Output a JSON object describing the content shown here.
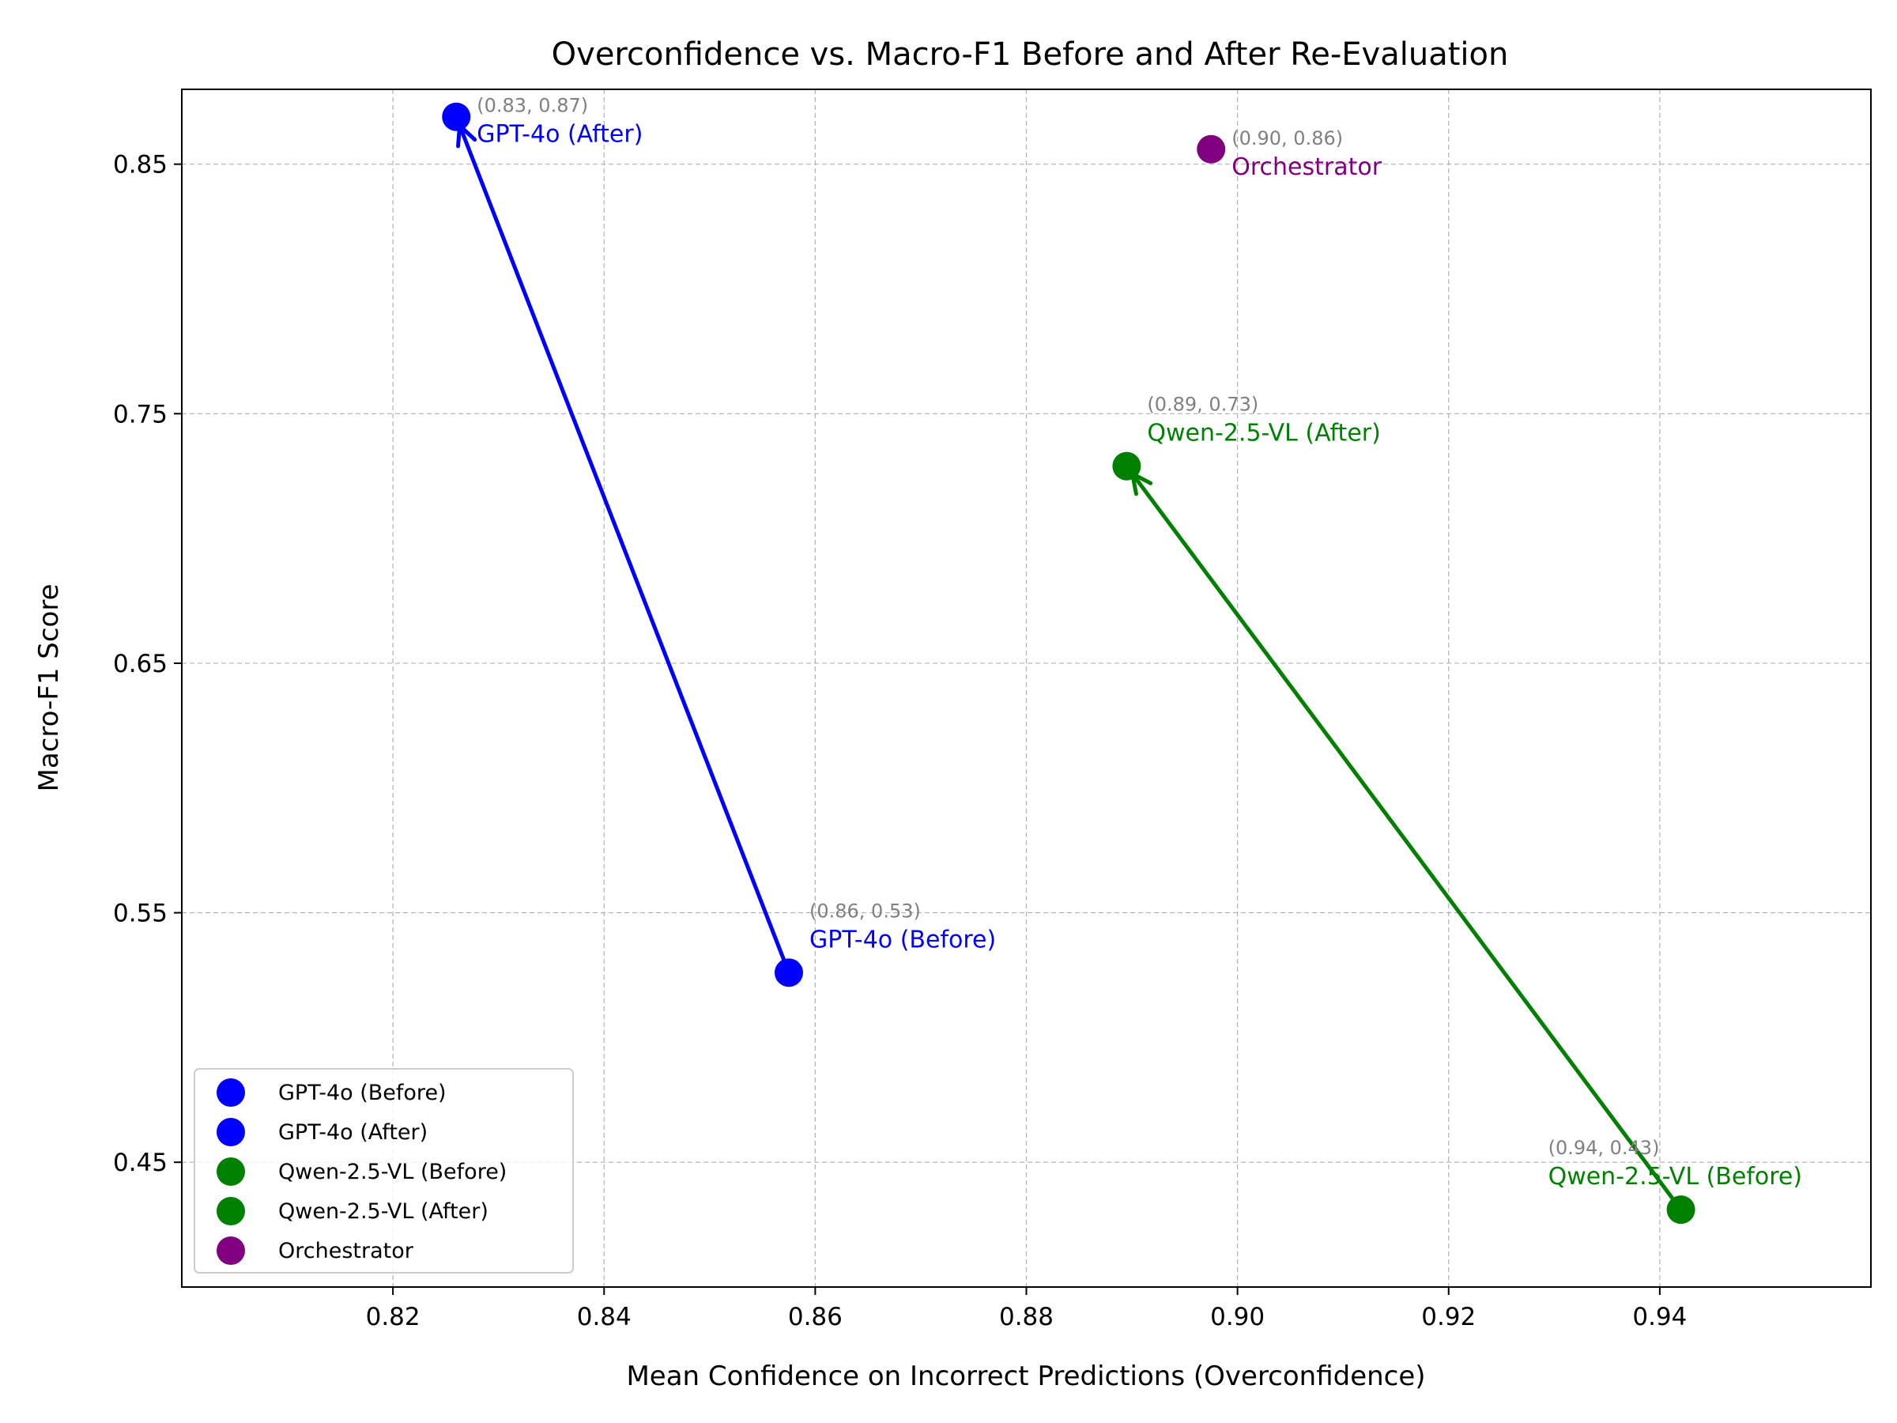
{
  "chart_data": {
    "type": "scatter",
    "title": "Overconfidence vs. Macro-F1 Before and After Re-Evaluation",
    "xlabel": "Mean Confidence on Incorrect Predictions (Overconfidence)",
    "ylabel": "Macro-F1 Score",
    "xlim": [
      0.8,
      0.96
    ],
    "ylim": [
      0.4,
      0.88
    ],
    "xticks": [
      0.82,
      0.84,
      0.86,
      0.88,
      0.9,
      0.92,
      0.94
    ],
    "xtick_labels": [
      "0.82",
      "0.84",
      "0.86",
      "0.88",
      "0.90",
      "0.92",
      "0.94"
    ],
    "yticks": [
      0.45,
      0.55,
      0.65,
      0.75,
      0.85
    ],
    "ytick_labels": [
      "0.45",
      "0.55",
      "0.65",
      "0.75",
      "0.85"
    ],
    "grid": true,
    "legend_position": "lower-left",
    "series": [
      {
        "name": "GPT-4o (Before)",
        "color": "#0000ff",
        "x": 0.8575,
        "y": 0.526,
        "point_label": "GPT-4o (Before)",
        "coord_label": "(0.86, 0.53)",
        "label_side": "right"
      },
      {
        "name": "GPT-4o (After)",
        "color": "#0000ff",
        "x": 0.826,
        "y": 0.869,
        "point_label": "GPT-4o (After)",
        "coord_label": "(0.83, 0.87)",
        "label_side": "right"
      },
      {
        "name": "Qwen-2.5-VL (Before)",
        "color": "#008000",
        "x": 0.942,
        "y": 0.431,
        "point_label": "Qwen-2.5-VL (Before)",
        "coord_label": "(0.94, 0.43)",
        "label_side": "left"
      },
      {
        "name": "Qwen-2.5-VL (After)",
        "color": "#008000",
        "x": 0.8895,
        "y": 0.729,
        "point_label": "Qwen-2.5-VL (After)",
        "coord_label": "(0.89, 0.73)",
        "label_side": "right"
      },
      {
        "name": "Orchestrator",
        "color": "#800080",
        "x": 0.8975,
        "y": 0.856,
        "point_label": "Orchestrator",
        "coord_label": "(0.90, 0.86)",
        "label_side": "right"
      }
    ],
    "arrows": [
      {
        "from": 0,
        "to": 1,
        "color": "#0000ff"
      },
      {
        "from": 2,
        "to": 3,
        "color": "#008000"
      }
    ]
  }
}
